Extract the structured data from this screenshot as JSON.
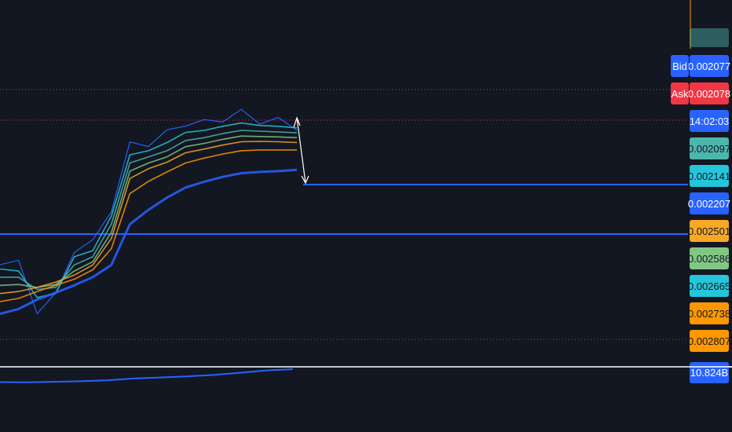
{
  "chart_data": {
    "type": "line",
    "title": "",
    "xlabel": "",
    "ylabel": "",
    "grid": false,
    "price_tags": [
      {
        "label": "Bid",
        "label_color": "#2962ff",
        "value": "0.002077",
        "color": "#2962ff",
        "text_color": "#ffffff"
      },
      {
        "label": "Ask",
        "label_color": "#f23645",
        "value": "0.002078",
        "color": "#f23645",
        "text_color": "#ffffff"
      },
      {
        "label": "",
        "value": "14:02:03",
        "color": "#2962ff",
        "text_color": "#ffffff"
      },
      {
        "label": "",
        "value": "0.002097",
        "color": "#4db6ac",
        "text_color": "#131722"
      },
      {
        "label": "",
        "value": "0.002141",
        "color": "#26c6da",
        "text_color": "#131722"
      },
      {
        "label": "",
        "value": "0.002207",
        "color": "#2962ff",
        "text_color": "#ffffff"
      },
      {
        "label": "",
        "value": "0.002501",
        "color": "#f9a825",
        "text_color": "#131722"
      },
      {
        "label": "",
        "value": "0.002586",
        "color": "#81c784",
        "text_color": "#131722"
      },
      {
        "label": "",
        "value": "0.002665",
        "color": "#26c6da",
        "text_color": "#131722"
      },
      {
        "label": "",
        "value": "0.002738",
        "color": "#ff9800",
        "text_color": "#131722"
      },
      {
        "label": "",
        "value": "0.002807",
        "color": "#ff9800",
        "text_color": "#131722"
      }
    ],
    "top_partial_tag": {
      "value": "0.002097",
      "color": "#4db6ac"
    },
    "bottom_tag": {
      "value": "10.824B",
      "color": "#2962ff"
    },
    "series": [
      {
        "color": "#2962ff",
        "role": "price",
        "values": [
          0.00243,
          0.00244,
          0.00255,
          0.00252,
          0.0024,
          0.00239,
          0.0023,
          0.00215,
          0.00214,
          0.00212,
          0.00209,
          0.002095,
          0.00208,
          0.00207,
          0.002085,
          0.00209,
          0.0021
        ]
      },
      {
        "color": "#26c6da",
        "role": "ema-fast",
        "values": [
          0.00245,
          0.002455,
          0.00252,
          0.00251,
          0.00242,
          0.002405,
          0.00232,
          0.00217,
          0.00216,
          0.00214,
          0.002115,
          0.00211,
          0.0021,
          0.002092,
          0.002098,
          0.0021,
          0.002104
        ]
      },
      {
        "color": "#4db6ac",
        "role": "ema",
        "values": [
          0.00247,
          0.00247,
          0.0025,
          0.002495,
          0.00244,
          0.00242,
          0.00234,
          0.00219,
          0.002175,
          0.00216,
          0.002135,
          0.002128,
          0.002118,
          0.00211,
          0.002112,
          0.002114,
          0.002116
        ]
      },
      {
        "color": "#81c784",
        "role": "ema",
        "values": [
          0.00249,
          0.002488,
          0.002495,
          0.002488,
          0.002455,
          0.002432,
          0.00236,
          0.00221,
          0.00219,
          0.002175,
          0.00215,
          0.002142,
          0.002132,
          0.002124,
          0.002125,
          0.002126,
          0.002128
        ]
      },
      {
        "color": "#f9a825",
        "role": "ema",
        "values": [
          0.00251,
          0.002505,
          0.002495,
          0.002482,
          0.002465,
          0.00244,
          0.002375,
          0.002228,
          0.002204,
          0.002188,
          0.002165,
          0.002156,
          0.002146,
          0.002138,
          0.002137,
          0.002138,
          0.00214
        ]
      },
      {
        "color": "#ff9800",
        "role": "ema-slow",
        "values": [
          0.00253,
          0.002522,
          0.002505,
          0.00249,
          0.002475,
          0.002452,
          0.0024,
          0.002265,
          0.002235,
          0.002212,
          0.00219,
          0.002178,
          0.002168,
          0.00216,
          0.002158,
          0.002158,
          0.002158
        ]
      },
      {
        "color": "#2962ff",
        "role": "ema-base",
        "values": [
          0.00256,
          0.002548,
          0.002525,
          0.002508,
          0.00249,
          0.00247,
          0.00244,
          0.00234,
          0.002305,
          0.002275,
          0.00225,
          0.002236,
          0.002224,
          0.002215,
          0.002212,
          0.00221,
          0.002207
        ]
      }
    ],
    "volume_line": {
      "color": "#2962ff",
      "note_values": [
        10.1,
        10.09,
        10.12,
        10.15,
        10.2,
        10.3,
        10.36,
        10.42,
        10.5,
        10.62,
        10.75,
        10.82
      ]
    }
  }
}
